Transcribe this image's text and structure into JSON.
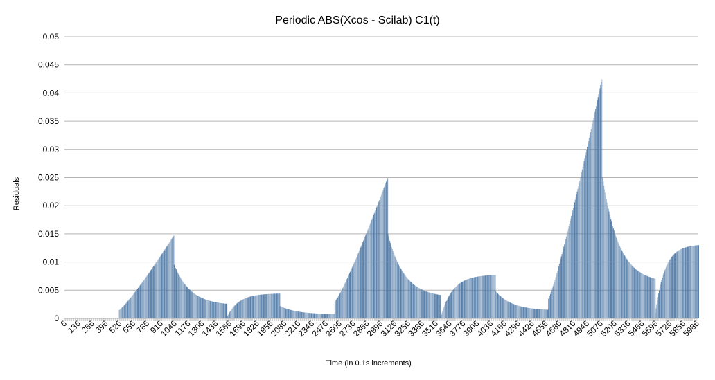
{
  "chart_data": {
    "type": "bar",
    "title": "Periodic ABS(Xcos - Scilab) C1(t)",
    "xlabel": "Time (in 0.1s increments)",
    "ylabel": "Residuals",
    "ylim": [
      0,
      0.05
    ],
    "y_ticks": [
      "0",
      "0.005",
      "0.01",
      "0.015",
      "0.02",
      "0.025",
      "0.03",
      "0.035",
      "0.04",
      "0.045",
      "0.05"
    ],
    "x_ticks": [
      "6",
      "136",
      "266",
      "396",
      "526",
      "656",
      "786",
      "916",
      "1046",
      "1176",
      "1306",
      "1436",
      "1566",
      "1696",
      "1826",
      "1956",
      "2086",
      "2216",
      "2346",
      "2476",
      "2606",
      "2736",
      "2866",
      "2996",
      "3126",
      "3256",
      "3386",
      "3516",
      "3646",
      "3776",
      "3906",
      "4036",
      "4166",
      "4296",
      "4426",
      "4556",
      "4686",
      "4816",
      "4946",
      "5076",
      "5206",
      "5336",
      "5466",
      "5596",
      "5726",
      "5856",
      "5986"
    ],
    "grid": true,
    "bar_color": "#4f79a6",
    "segments": [
      {
        "x_start": 6,
        "x_end": 520,
        "shape": "flat",
        "y_start": 0,
        "y_end": 0
      },
      {
        "x_start": 520,
        "x_end": 1040,
        "shape": "grow",
        "y_start": 0.0015,
        "y_end": 0.0148
      },
      {
        "x_start": 1040,
        "x_end": 1540,
        "shape": "decay",
        "y_start": 0.0095,
        "y_end": 0.0023
      },
      {
        "x_start": 1540,
        "x_end": 2040,
        "shape": "rise",
        "y_start": 0.0003,
        "y_end": 0.0044
      },
      {
        "x_start": 2040,
        "x_end": 2560,
        "shape": "decay",
        "y_start": 0.0022,
        "y_end": 0.0007
      },
      {
        "x_start": 2560,
        "x_end": 3060,
        "shape": "grow",
        "y_start": 0.003,
        "y_end": 0.025
      },
      {
        "x_start": 3060,
        "x_end": 3560,
        "shape": "decay",
        "y_start": 0.015,
        "y_end": 0.0037
      },
      {
        "x_start": 3560,
        "x_end": 4080,
        "shape": "rise",
        "y_start": 0.0003,
        "y_end": 0.0077
      },
      {
        "x_start": 4080,
        "x_end": 4580,
        "shape": "decay",
        "y_start": 0.0048,
        "y_end": 0.0014
      },
      {
        "x_start": 4580,
        "x_end": 5090,
        "shape": "grow",
        "y_start": 0.0035,
        "y_end": 0.043
      },
      {
        "x_start": 5090,
        "x_end": 5590,
        "shape": "decay",
        "y_start": 0.025,
        "y_end": 0.0063
      },
      {
        "x_start": 5590,
        "x_end": 6000,
        "shape": "rise",
        "y_start": 0.001,
        "y_end": 0.013
      }
    ]
  }
}
